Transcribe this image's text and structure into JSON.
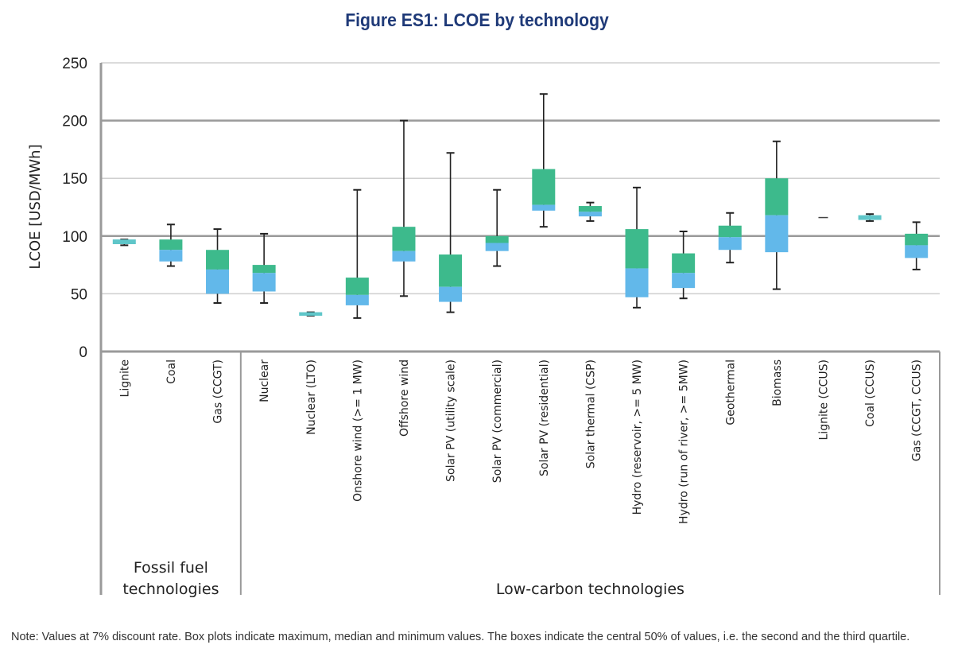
{
  "chart_data": {
    "type": "box",
    "title": "Figure ES1: LCOE by technology",
    "ylabel": "LCOE [USD/MWh]",
    "xlabel": "",
    "ylim": [
      0,
      250
    ],
    "yticks": [
      0,
      50,
      100,
      150,
      200,
      250
    ],
    "grid": true,
    "colors": {
      "upper_box": "#3dba8c",
      "lower_box": "#62b8ea",
      "flat_box": "#5fc6c9",
      "whisker": "#222222",
      "grid_major": "#9a9a9a",
      "grid_minor": "#cfcfcf",
      "title": "#1f3a78"
    },
    "groups": [
      {
        "label_lines": [
          "Fossil fuel",
          "technologies"
        ],
        "categories": [
          "Lignite",
          "Coal",
          "Gas (CCGT)"
        ]
      },
      {
        "label_lines": [
          "Low-carbon technologies"
        ],
        "categories": [
          "Nuclear",
          "Nuclear (LTO)",
          "Onshore wind (>= 1 MW)",
          "Offshore wind",
          "Solar PV (utility scale)",
          "Solar PV (commercial)",
          "Solar PV (residential)",
          "Solar thermal (CSP)",
          "Hydro (reservoir, >= 5 MW)",
          "Hydro (run of river, >= 5MW)",
          "Geothermal",
          "Biomass",
          "Lignite (CCUS)",
          "Coal (CCUS)",
          "Gas (CCGT, CCUS)"
        ]
      }
    ],
    "categories": [
      "Lignite",
      "Coal",
      "Gas (CCGT)",
      "Nuclear",
      "Nuclear (LTO)",
      "Onshore wind (>= 1 MW)",
      "Offshore wind",
      "Solar PV (utility scale)",
      "Solar PV (commercial)",
      "Solar PV (residential)",
      "Solar thermal (CSP)",
      "Hydro (reservoir, >= 5 MW)",
      "Hydro (run of river, >= 5MW)",
      "Geothermal",
      "Biomass",
      "Lignite (CCUS)",
      "Coal (CCUS)",
      "Gas (CCGT, CCUS)"
    ],
    "series": [
      {
        "name": "Lignite",
        "min": 92,
        "q1": 94,
        "median": 95,
        "q3": 96,
        "max": 97
      },
      {
        "name": "Coal",
        "min": 74,
        "q1": 78,
        "median": 88,
        "q3": 97,
        "max": 110
      },
      {
        "name": "Gas (CCGT)",
        "min": 42,
        "q1": 50,
        "median": 71,
        "q3": 88,
        "max": 106
      },
      {
        "name": "Nuclear",
        "min": 42,
        "q1": 52,
        "median": 68,
        "q3": 75,
        "max": 102
      },
      {
        "name": "Nuclear (LTO)",
        "min": 31,
        "q1": 32,
        "median": 32,
        "q3": 33,
        "max": 34
      },
      {
        "name": "Onshore wind (>= 1 MW)",
        "min": 29,
        "q1": 40,
        "median": 49,
        "q3": 64,
        "max": 140
      },
      {
        "name": "Offshore wind",
        "min": 48,
        "q1": 78,
        "median": 87,
        "q3": 108,
        "max": 200
      },
      {
        "name": "Solar PV (utility scale)",
        "min": 34,
        "q1": 43,
        "median": 56,
        "q3": 84,
        "max": 172
      },
      {
        "name": "Solar PV (commercial)",
        "min": 74,
        "q1": 87,
        "median": 94,
        "q3": 100,
        "max": 140
      },
      {
        "name": "Solar PV (residential)",
        "min": 108,
        "q1": 122,
        "median": 127,
        "q3": 158,
        "max": 223
      },
      {
        "name": "Solar thermal (CSP)",
        "min": 113,
        "q1": 117,
        "median": 121,
        "q3": 126,
        "max": 129
      },
      {
        "name": "Hydro (reservoir, >= 5 MW)",
        "min": 38,
        "q1": 47,
        "median": 72,
        "q3": 106,
        "max": 142
      },
      {
        "name": "Hydro (run of river, >= 5MW)",
        "min": 46,
        "q1": 55,
        "median": 68,
        "q3": 85,
        "max": 104
      },
      {
        "name": "Geothermal",
        "min": 77,
        "q1": 88,
        "median": 99,
        "q3": 109,
        "max": 120
      },
      {
        "name": "Biomass",
        "min": 54,
        "q1": 86,
        "median": 118,
        "q3": 150,
        "max": 182
      },
      {
        "name": "Lignite (CCUS)",
        "min": 116,
        "q1": 116,
        "median": 116,
        "q3": 116,
        "max": 116
      },
      {
        "name": "Coal (CCUS)",
        "min": 113,
        "q1": 115,
        "median": 116,
        "q3": 117,
        "max": 119
      },
      {
        "name": "Gas (CCGT, CCUS)",
        "min": 71,
        "q1": 81,
        "median": 92,
        "q3": 102,
        "max": 112
      }
    ],
    "flat_categories": [
      "Lignite",
      "Nuclear (LTO)",
      "Coal (CCUS)"
    ],
    "note": "Note: Values at 7% discount rate. Box plots indicate maximum, median and minimum values. The boxes indicate the central 50% of values, i.e. the second and the third quartile."
  }
}
